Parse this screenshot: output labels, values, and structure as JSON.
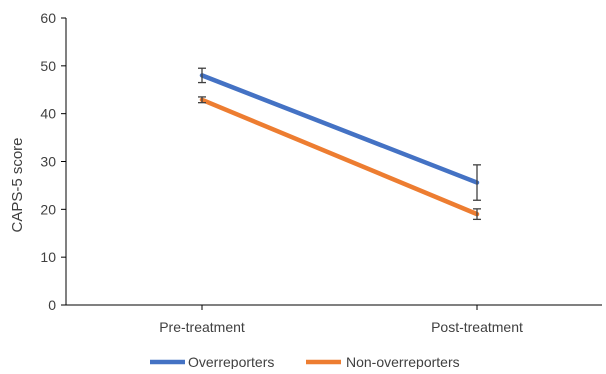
{
  "chart_data": {
    "type": "line",
    "title": "",
    "xlabel": "",
    "ylabel": "CAPS-5 score",
    "categories": [
      "Pre-treatment",
      "Post-treatment"
    ],
    "ylim": [
      0,
      60
    ],
    "yticks": [
      0,
      10,
      20,
      30,
      40,
      50,
      60
    ],
    "grid": false,
    "legend_position": "bottom",
    "series": [
      {
        "name": "Overreporters",
        "color": "#4472C4",
        "values": [
          48.0,
          25.6
        ],
        "error": [
          1.5,
          3.7
        ]
      },
      {
        "name": "Non-overreporters",
        "color": "#ED7D31",
        "values": [
          42.9,
          19.0
        ],
        "error": [
          0.6,
          1.1
        ]
      }
    ]
  }
}
